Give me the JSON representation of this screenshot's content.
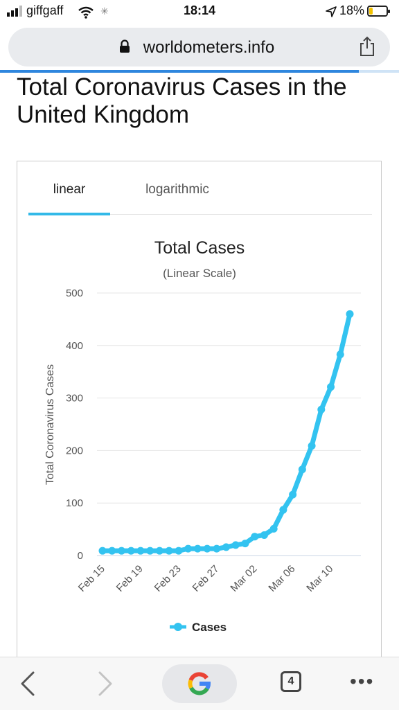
{
  "status_bar": {
    "carrier": "giffgaff",
    "time": "18:14",
    "battery_percent": "18%",
    "icons": [
      "signal-icon",
      "wifi-icon",
      "spinner-icon",
      "location-icon",
      "battery-icon"
    ]
  },
  "browser": {
    "url": "worldometers.info",
    "load_progress": 0.9,
    "tab_count": "4",
    "toolbar_icons": [
      "back-icon",
      "forward-icon",
      "google-icon",
      "tabs-icon",
      "more-icon"
    ]
  },
  "page": {
    "heading": "Total Coronavirus Cases in the United Kingdom",
    "tabs": [
      {
        "label": "linear",
        "active": true
      },
      {
        "label": "logarithmic",
        "active": false
      }
    ]
  },
  "colors": {
    "series": "#33c3f0",
    "progress": "#2e86de",
    "tab_underline": "#33b9e8"
  },
  "chart_data": {
    "type": "line",
    "title": "Total Cases",
    "subtitle": "(Linear Scale)",
    "ylabel": "Total Coronavirus Cases",
    "xlabel": "",
    "ylim": [
      0,
      500
    ],
    "yticks": [
      0,
      100,
      200,
      300,
      400,
      500
    ],
    "xtick_labels": [
      "Feb 15",
      "Feb 19",
      "Feb 23",
      "Feb 27",
      "Mar 02",
      "Mar 06",
      "Mar 10"
    ],
    "x": [
      "Feb 15",
      "Feb 16",
      "Feb 17",
      "Feb 18",
      "Feb 19",
      "Feb 20",
      "Feb 21",
      "Feb 22",
      "Feb 23",
      "Feb 24",
      "Feb 25",
      "Feb 26",
      "Feb 27",
      "Feb 28",
      "Feb 29",
      "Mar 01",
      "Mar 02",
      "Mar 03",
      "Mar 04",
      "Mar 05",
      "Mar 06",
      "Mar 07",
      "Mar 08",
      "Mar 09",
      "Mar 10",
      "Mar 11",
      "Mar 12"
    ],
    "series": [
      {
        "name": "Cases",
        "values": [
          9,
          9,
          9,
          9,
          9,
          9,
          9,
          9,
          9,
          13,
          13,
          13,
          13,
          16,
          20,
          23,
          36,
          39,
          51,
          87,
          116,
          164,
          209,
          278,
          321,
          383,
          460
        ]
      }
    ],
    "grid": true,
    "legend": "bottom"
  }
}
